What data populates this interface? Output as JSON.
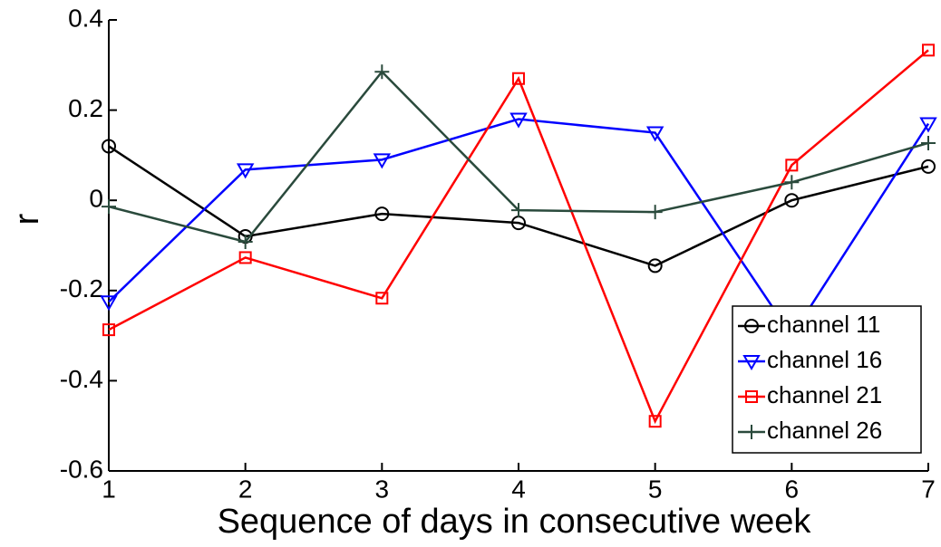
{
  "chart_data": {
    "type": "line",
    "x_label": "Sequence of days in consecutive week",
    "y_label": "r",
    "x": [
      1,
      2,
      3,
      4,
      5,
      6,
      7
    ],
    "series": [
      {
        "name": "channel 11",
        "color": "#000000",
        "marker": "circle",
        "values": [
          0.12,
          -0.08,
          -0.03,
          -0.05,
          -0.145,
          0.0,
          0.075
        ]
      },
      {
        "name": "channel 16",
        "color": "#0000ff",
        "marker": "triangle-down",
        "values": [
          -0.225,
          0.068,
          0.09,
          0.18,
          0.15,
          -0.3,
          0.17
        ]
      },
      {
        "name": "channel 21",
        "color": "#ff0000",
        "marker": "square",
        "values": [
          -0.287,
          -0.127,
          -0.217,
          0.27,
          -0.49,
          0.078,
          0.333
        ]
      },
      {
        "name": "channel 26",
        "color": "#2a4a3c",
        "marker": "plus",
        "values": [
          -0.014,
          -0.092,
          0.285,
          -0.022,
          -0.026,
          0.04,
          0.127
        ]
      }
    ],
    "xlim": [
      1,
      7
    ],
    "xticks": [
      1,
      2,
      3,
      4,
      5,
      6,
      7
    ],
    "ylim": [
      -0.6,
      0.4
    ],
    "yticks": [
      -0.6,
      -0.4,
      -0.2,
      0,
      0.2,
      0.4
    ],
    "legend": "lower-right"
  }
}
